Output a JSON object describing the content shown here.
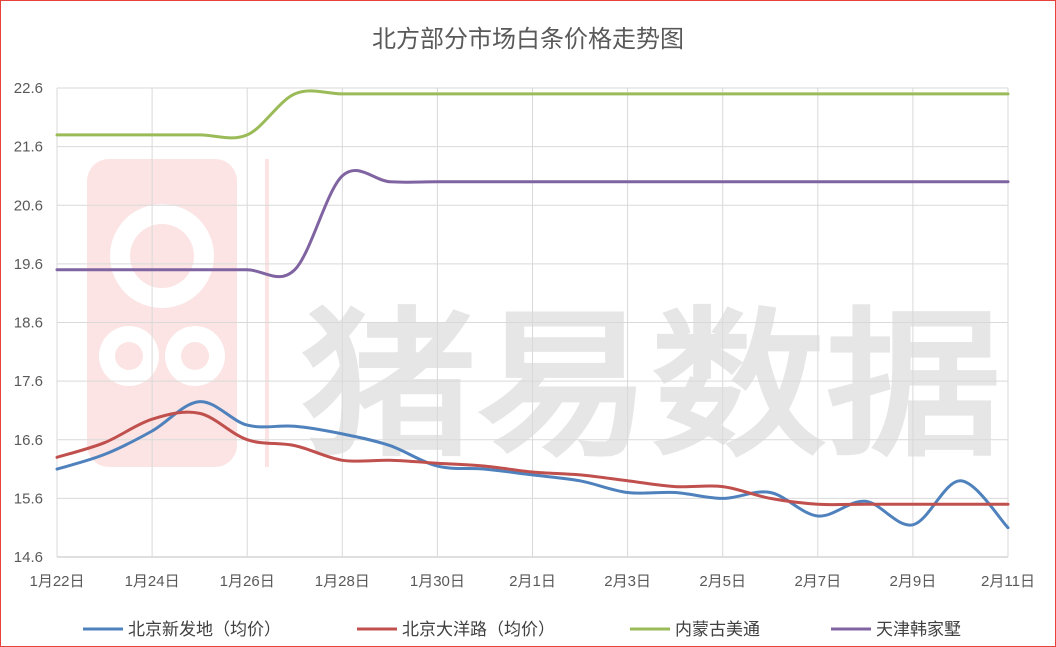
{
  "chart_data": {
    "type": "line",
    "title": "北方部分市场白条价格走势图",
    "xlabel": "",
    "ylabel": "",
    "ylim": [
      14.6,
      22.6
    ],
    "yticks": [
      "22.6",
      "21.6",
      "20.6",
      "19.6",
      "18.6",
      "17.6",
      "16.6",
      "15.6",
      "14.6"
    ],
    "categories": [
      "1月22日",
      "1月23日",
      "1月24日",
      "1月25日",
      "1月26日",
      "1月27日",
      "1月28日",
      "1月29日",
      "1月30日",
      "1月31日",
      "2月1日",
      "2月2日",
      "2月3日",
      "2月4日",
      "2月5日",
      "2月6日",
      "2月7日",
      "2月8日",
      "2月9日",
      "2月10日",
      "2月11日"
    ],
    "xtick_labels": [
      "1月22日",
      "1月24日",
      "1月26日",
      "1月28日",
      "1月30日",
      "2月1日",
      "2月3日",
      "2月5日",
      "2月7日",
      "2月9日",
      "2月11日"
    ],
    "grid": true,
    "legend_position": "bottom",
    "series": [
      {
        "name": "北京新发地（均价）",
        "color": "#4f81bd",
        "values": [
          16.1,
          16.35,
          16.75,
          17.25,
          16.85,
          16.83,
          16.7,
          16.5,
          16.15,
          16.1,
          16.0,
          15.9,
          15.7,
          15.7,
          15.6,
          15.7,
          15.3,
          15.55,
          15.15,
          15.9,
          15.1
        ]
      },
      {
        "name": "北京大洋路（均价）",
        "color": "#c0504d",
        "values": [
          16.3,
          16.55,
          16.95,
          17.05,
          16.6,
          16.5,
          16.25,
          16.25,
          16.2,
          16.15,
          16.05,
          16.0,
          15.9,
          15.8,
          15.8,
          15.6,
          15.5,
          15.5,
          15.5,
          15.5,
          15.5
        ]
      },
      {
        "name": "内蒙古美通",
        "color": "#9bbb59",
        "values": [
          21.8,
          21.8,
          21.8,
          21.8,
          21.8,
          22.5,
          22.5,
          22.5,
          22.5,
          22.5,
          22.5,
          22.5,
          22.5,
          22.5,
          22.5,
          22.5,
          22.5,
          22.5,
          22.5,
          22.5,
          22.5
        ]
      },
      {
        "name": "天津韩家墅",
        "color": "#8064a2",
        "values": [
          19.5,
          19.5,
          19.5,
          19.5,
          19.5,
          19.5,
          21.1,
          21.0,
          21.0,
          21.0,
          21.0,
          21.0,
          21.0,
          21.0,
          21.0,
          21.0,
          21.0,
          21.0,
          21.0,
          21.0,
          21.0
        ]
      }
    ]
  },
  "watermark": {
    "text": "猪易数据"
  }
}
